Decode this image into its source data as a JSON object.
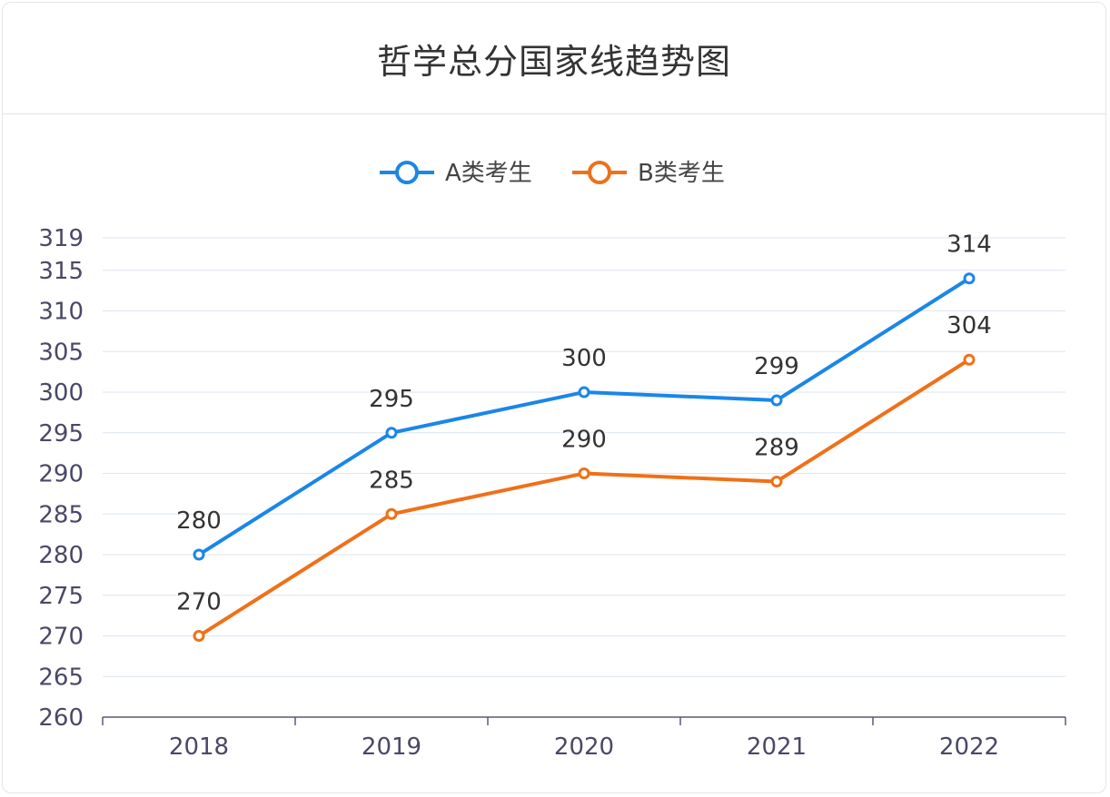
{
  "chart_data": {
    "type": "line",
    "title": "哲学总分国家线趋势图",
    "categories": [
      "2018",
      "2019",
      "2020",
      "2021",
      "2022"
    ],
    "series": [
      {
        "name": "A类考生",
        "color": "#1a86e8",
        "values": [
          280,
          295,
          300,
          299,
          314
        ]
      },
      {
        "name": "B类考生",
        "color": "#f07017",
        "values": [
          270,
          285,
          290,
          289,
          304
        ]
      }
    ],
    "y_ticks": [
      260,
      265,
      270,
      275,
      280,
      285,
      290,
      295,
      300,
      305,
      310,
      315,
      319
    ],
    "ylim": [
      260,
      319
    ],
    "grid": true,
    "legend_position": "top-center",
    "xlabel": "",
    "ylabel": ""
  }
}
